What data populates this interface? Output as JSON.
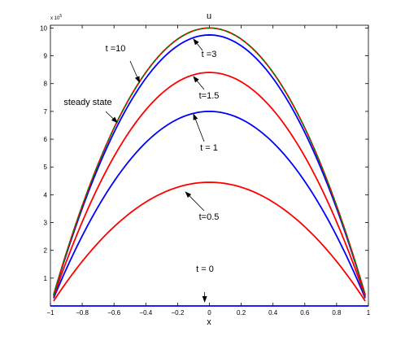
{
  "chart_data": {
    "type": "line",
    "title": "u",
    "xlabel": "x",
    "ylabel": "",
    "y_scale_note": "x 10",
    "y_scale_exponent": "5",
    "xlim": [
      -1,
      1
    ],
    "ylim": [
      0,
      10.1
    ],
    "xticks": [
      -1,
      -0.8,
      -0.6,
      -0.4,
      -0.2,
      0,
      0.2,
      0.4,
      0.6,
      0.8,
      1
    ],
    "xtick_labels": [
      "−1",
      "−0.8",
      "−0.6",
      "−0.4",
      "−0.2",
      "0",
      "0.2",
      "0.4",
      "0.6",
      "0.8",
      "1"
    ],
    "yticks": [
      1,
      2,
      3,
      4,
      5,
      6,
      7,
      8,
      9,
      10
    ],
    "ytick_labels": [
      "1",
      "2",
      "3",
      "4",
      "5",
      "6",
      "7",
      "8",
      "9",
      "10"
    ],
    "grid": false,
    "legend": "none",
    "curve_form": "peak * (1 - x^2) on x in [-0.98, 0.98]",
    "series": [
      {
        "label": "t = 0",
        "color": "#0000ff",
        "peak": 0.0
      },
      {
        "label": "t=0.5",
        "color": "#ff0000",
        "peak": 4.45
      },
      {
        "label": "t = 1",
        "color": "#0000ff",
        "peak": 7.0
      },
      {
        "label": "t=1.5",
        "color": "#ff0000",
        "peak": 8.4
      },
      {
        "label": "t =3",
        "color": "#0000ff",
        "peak": 9.75
      },
      {
        "label": "t =10",
        "color": "#ff0000",
        "peak": 10.0
      },
      {
        "label": "steady state",
        "color": "#008000",
        "peak": 10.0,
        "dashed": true
      }
    ],
    "annotations": [
      {
        "text": "t =10",
        "arrow_to": {
          "x": -0.44,
          "y": 8.05
        }
      },
      {
        "text": "steady state",
        "arrow_to": {
          "x": -0.58,
          "y": 6.6
        }
      },
      {
        "text": "t =3",
        "arrow_to": {
          "x": -0.1,
          "y": 9.6
        }
      },
      {
        "text": "t=1.5",
        "arrow_to": {
          "x": -0.1,
          "y": 8.25
        }
      },
      {
        "text": "t = 1",
        "arrow_to": {
          "x": -0.1,
          "y": 6.9
        }
      },
      {
        "text": "t=0.5",
        "arrow_to": {
          "x": -0.15,
          "y": 4.1
        }
      },
      {
        "text": "t = 0",
        "arrow_to": {
          "x": -0.03,
          "y": 0.15
        }
      }
    ]
  }
}
